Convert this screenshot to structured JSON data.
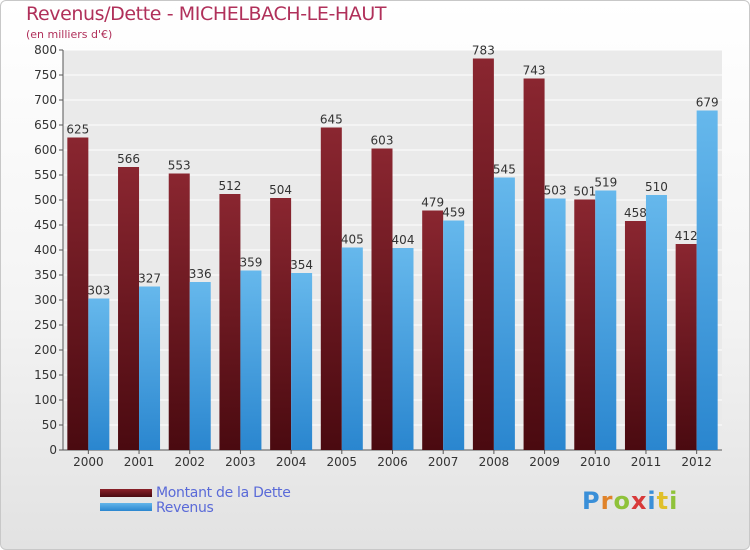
{
  "title": "Revenus/Dette - MICHELBACH-LE-HAUT",
  "subtitle": "(en milliers d'€)",
  "colors": {
    "title": "#b0305a",
    "dette": "#7a1a22",
    "revenus": "#4da3e3",
    "legend_text": "#5a6ad8"
  },
  "chart_data": {
    "type": "bar",
    "title": "Revenus/Dette - MICHELBACH-LE-HAUT",
    "ylabel": "(en milliers d'€)",
    "xlabel": "",
    "ylim": [
      0,
      800
    ],
    "ytick_step": 50,
    "grid": true,
    "legend_position": "bottom-left",
    "categories": [
      "2000",
      "2001",
      "2002",
      "2003",
      "2004",
      "2005",
      "2006",
      "2007",
      "2008",
      "2009",
      "2010",
      "2011",
      "2012"
    ],
    "series": [
      {
        "name": "Montant de la Dette",
        "values": [
          625,
          566,
          553,
          512,
          504,
          645,
          603,
          479,
          783,
          743,
          501,
          458,
          412
        ]
      },
      {
        "name": "Revenus",
        "values": [
          303,
          327,
          336,
          359,
          354,
          405,
          404,
          459,
          545,
          503,
          519,
          510,
          679
        ]
      }
    ]
  },
  "legend": {
    "items": [
      {
        "label": "Montant de la Dette"
      },
      {
        "label": "Revenus"
      }
    ]
  },
  "logo": {
    "letters": [
      "P",
      "r",
      "o",
      "x",
      "i",
      "t",
      "i"
    ],
    "colors": [
      "#3a8fd8",
      "#e0832a",
      "#8fc23a",
      "#d83a3a",
      "#3a8fd8",
      "#e0c02a",
      "#8fc23a"
    ]
  }
}
